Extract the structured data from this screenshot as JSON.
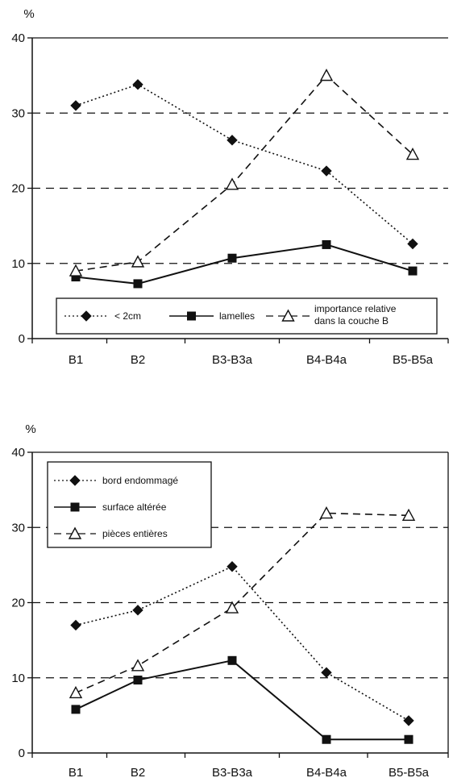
{
  "chart_data": [
    {
      "type": "line",
      "unit_label": "%",
      "categories": [
        "B1",
        "B2",
        "B3-B3a",
        "B4-B4a",
        "B5-B5a"
      ],
      "ylim": [
        0,
        40
      ],
      "yticks": [
        "0",
        "10",
        "20",
        "30",
        "40"
      ],
      "grid": "dashed horizontal",
      "legend_position": "bottom (inside plot)",
      "series": [
        {
          "name": "< 2cm",
          "marker": "diamond",
          "line_style": "dotted",
          "values": [
            31,
            33.8,
            26.4,
            22.3,
            12.6
          ]
        },
        {
          "name": "lamelles",
          "marker": "square",
          "line_style": "solid",
          "values": [
            8.2,
            7.3,
            10.7,
            12.5,
            9
          ]
        },
        {
          "name": "importance relative dans la couche B",
          "name_lines": [
            "importance relative",
            "dans la couche B"
          ],
          "marker": "triangle-open",
          "line_style": "dashed",
          "values": [
            9,
            10.2,
            20.5,
            35,
            24.5
          ]
        }
      ]
    },
    {
      "type": "line",
      "unit_label": "%",
      "categories": [
        "B1",
        "B2",
        "B3-B3a",
        "B4-B4a",
        "B5-B5a"
      ],
      "ylim": [
        0,
        40
      ],
      "yticks": [
        "0",
        "10",
        "20",
        "30",
        "40"
      ],
      "grid": "dashed horizontal",
      "legend_position": "top-left",
      "series": [
        {
          "name": "bord endommagé",
          "marker": "diamond",
          "line_style": "dotted",
          "values": [
            17,
            19,
            24.8,
            10.7,
            4.3
          ]
        },
        {
          "name": "surface altérée",
          "marker": "square",
          "line_style": "solid",
          "values": [
            5.8,
            9.7,
            12.3,
            1.8,
            1.8
          ]
        },
        {
          "name": "pièces entières",
          "marker": "triangle-open",
          "line_style": "dashed",
          "values": [
            8,
            11.6,
            19.3,
            31.9,
            31.6
          ]
        }
      ]
    }
  ]
}
